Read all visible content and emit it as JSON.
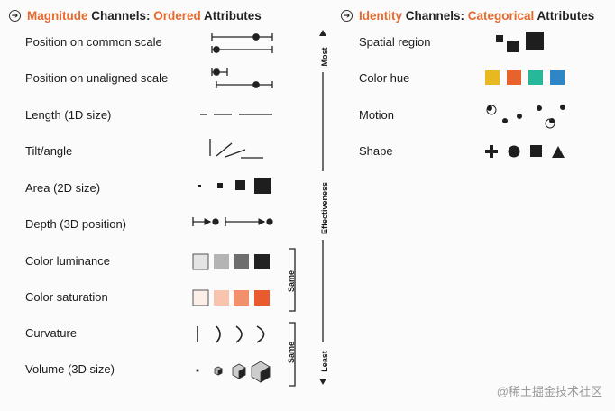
{
  "magnitude_header": {
    "title_part1": "Magnitude",
    "title_part2": " Channels: ",
    "title_part3": "Ordered",
    "title_part4": " Attributes",
    "arrow_icon": "circle-arrow-icon"
  },
  "identity_header": {
    "title_part1": "Identity",
    "title_part2": " Channels: ",
    "title_part3": "Categorical",
    "title_part4": " Attributes",
    "arrow_icon": "circle-arrow-icon"
  },
  "magnitude_rows": [
    {
      "label": "Position on common scale"
    },
    {
      "label": "Position on unaligned scale"
    },
    {
      "label": "Length (1D size)"
    },
    {
      "label": "Tilt/angle"
    },
    {
      "label": "Area (2D size)"
    },
    {
      "label": "Depth (3D position)"
    },
    {
      "label": "Color luminance"
    },
    {
      "label": "Color saturation"
    },
    {
      "label": "Curvature"
    },
    {
      "label": "Volume (3D size)"
    }
  ],
  "identity_rows": [
    {
      "label": "Spatial region"
    },
    {
      "label": "Color hue"
    },
    {
      "label": "Motion"
    },
    {
      "label": "Shape"
    }
  ],
  "effectiveness_axis": {
    "label": "Effectiveness",
    "top_label": "Most",
    "bottom_label": "Least"
  },
  "same_brackets": [
    {
      "label": "Same"
    },
    {
      "label": "Same"
    }
  ],
  "swatches": {
    "luminance": [
      "#e4e4e4",
      "#b4b4b4",
      "#6e6e6e",
      "#222222"
    ],
    "saturation": [
      "#fcefe8",
      "#f8c4ad",
      "#f2906b",
      "#ea5a2f"
    ],
    "hue": [
      "#e8b821",
      "#e8622c",
      "#27b899",
      "#2f86c6"
    ]
  },
  "watermark": "@稀土掘金技术社区"
}
